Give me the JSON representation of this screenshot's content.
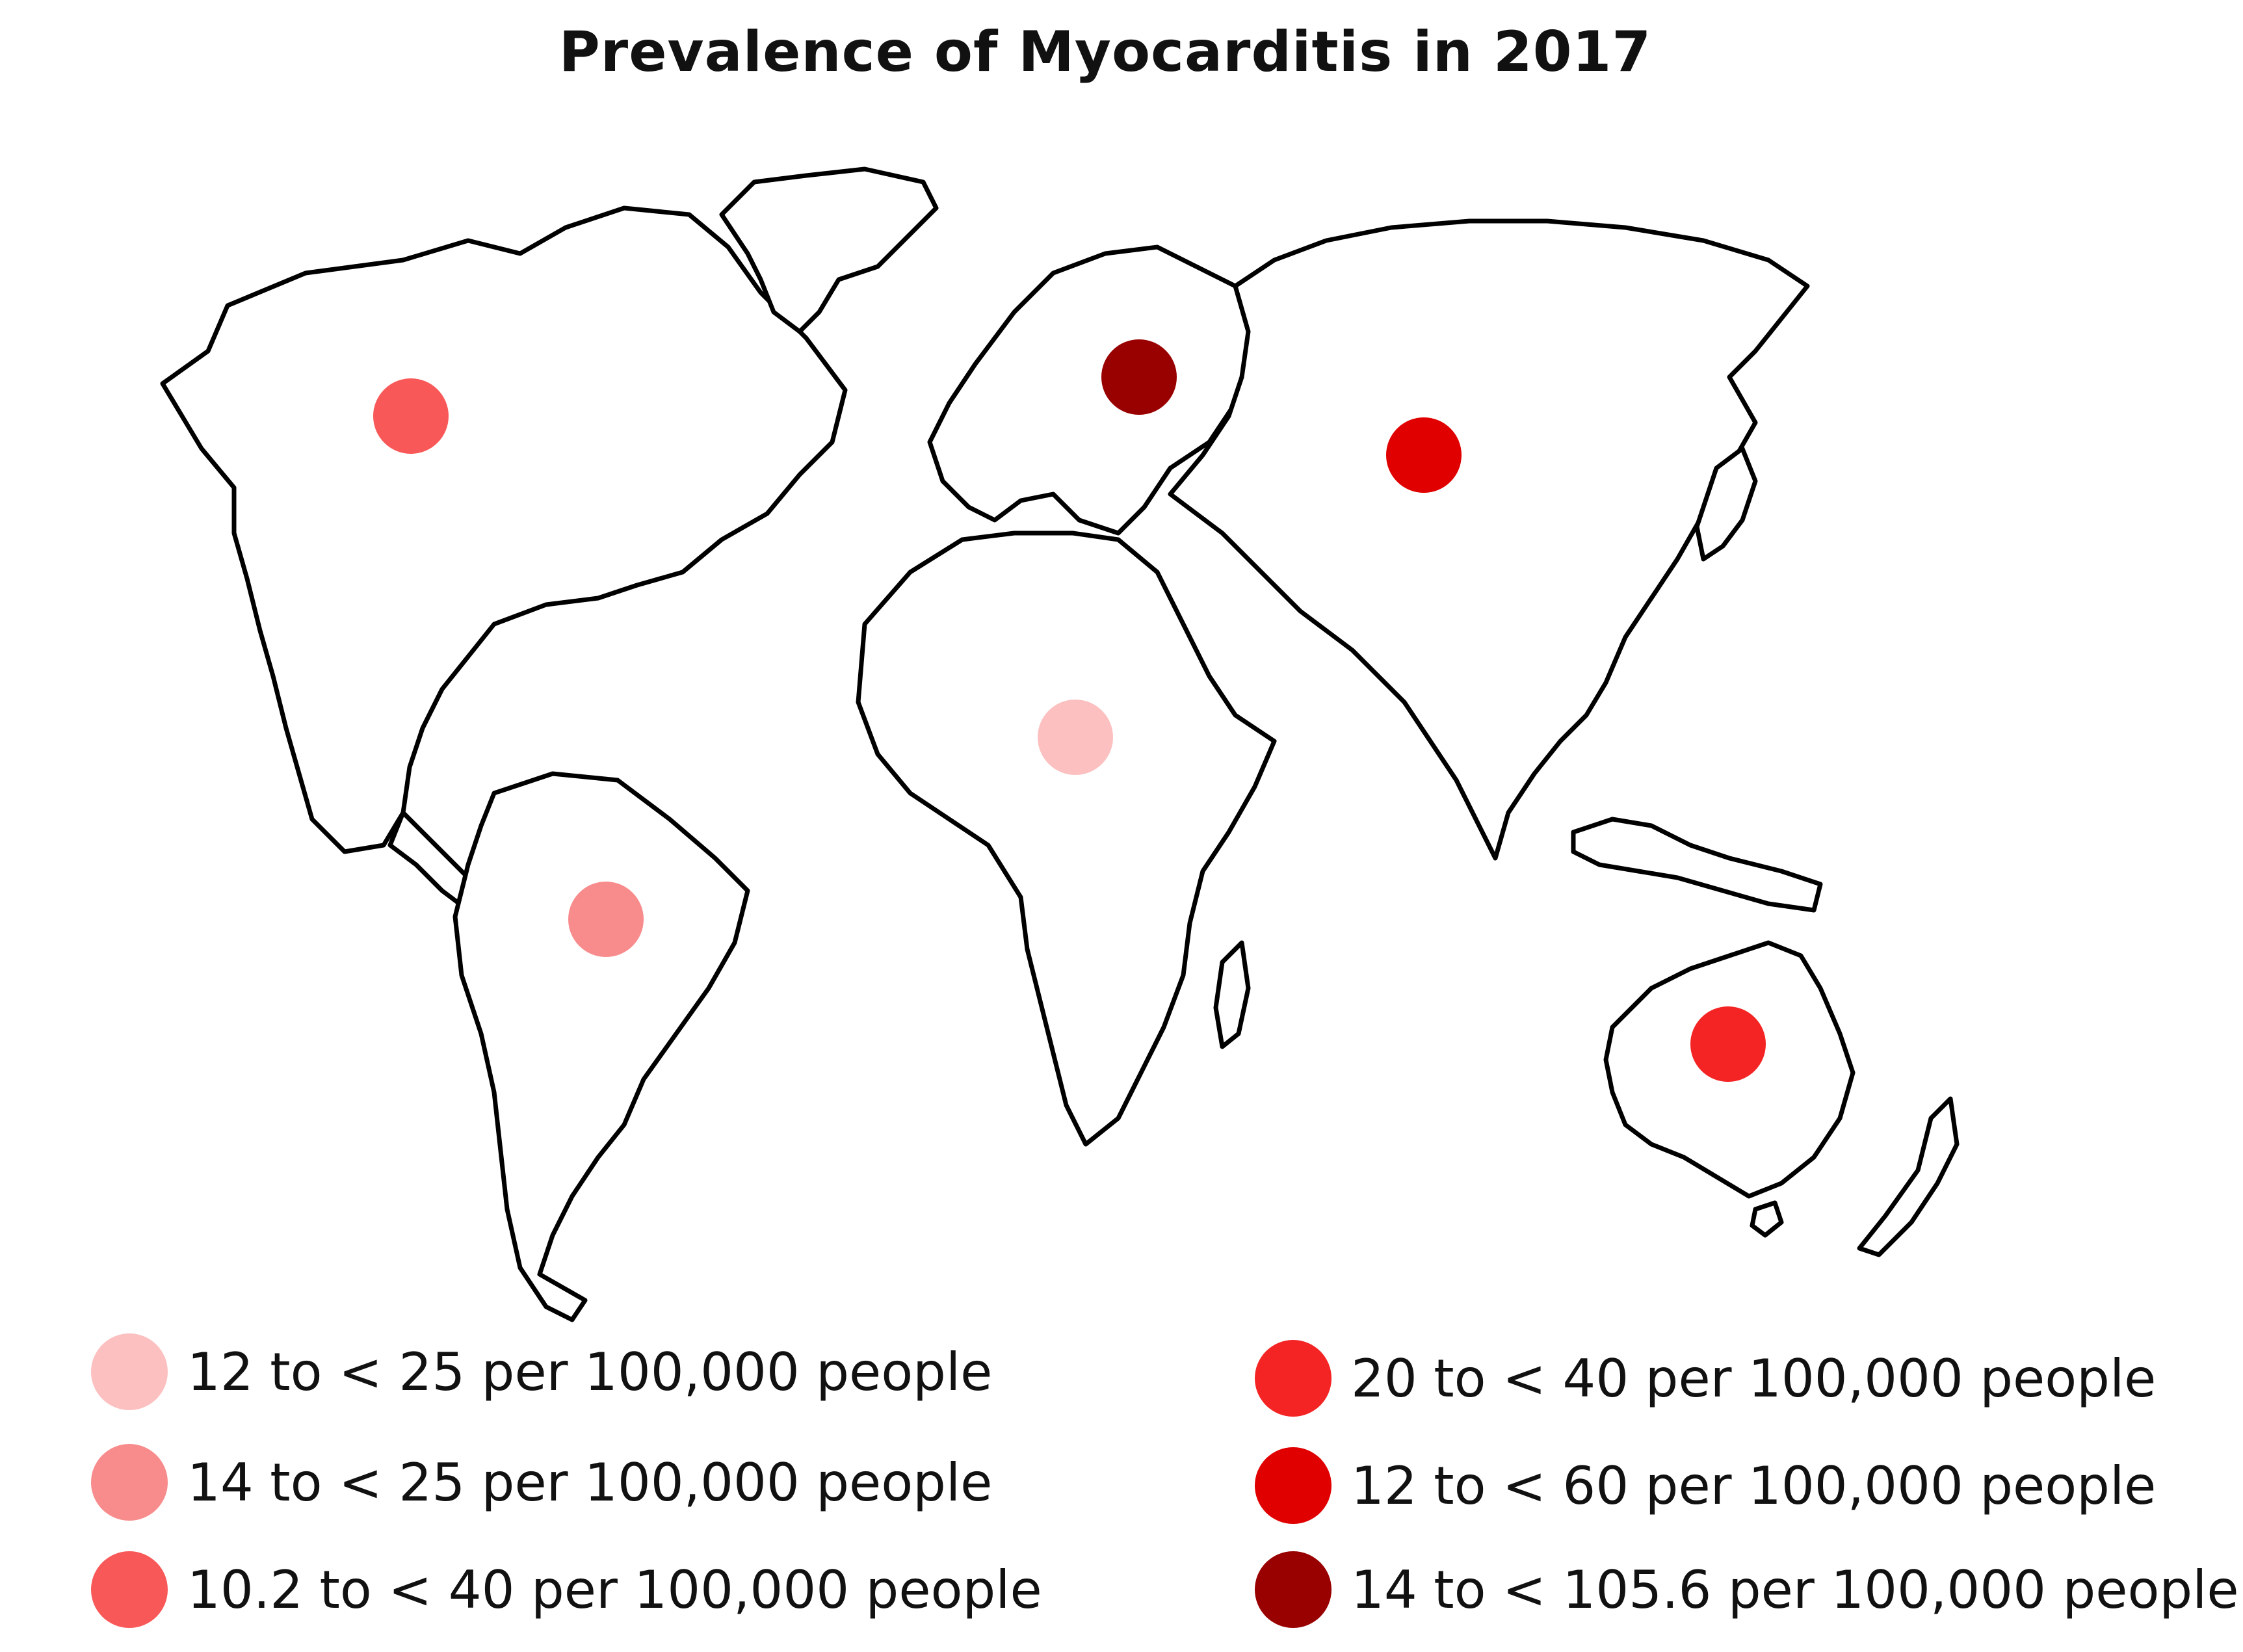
{
  "title": "Prevalence of Myocarditis in 2017",
  "colors": {
    "outline": "#000000",
    "land": "#ffffff"
  },
  "markers": [
    {
      "region": "North America",
      "color": "#f95858"
    },
    {
      "region": "South America",
      "color": "#f88c8c"
    },
    {
      "region": "Africa",
      "color": "#fcc0c0"
    },
    {
      "region": "Eastern Europe",
      "color": "#990000"
    },
    {
      "region": "Asia",
      "color": "#e00000"
    },
    {
      "region": "Australia",
      "color": "#f42424"
    }
  ],
  "legend": [
    {
      "label": "12 to < 25 per 100,000 people",
      "color": "#fcc0c0"
    },
    {
      "label": "14 to < 25 per 100,000 people",
      "color": "#f88c8c"
    },
    {
      "label": "10.2 to < 40 per 100,000 people",
      "color": "#f95858"
    },
    {
      "label": "20 to < 40 per 100,000 people",
      "color": "#f42424"
    },
    {
      "label": "12 to < 60 per 100,000 people",
      "color": "#e00000"
    },
    {
      "label": "14 to < 105.6 per 100,000 people",
      "color": "#990000"
    }
  ]
}
